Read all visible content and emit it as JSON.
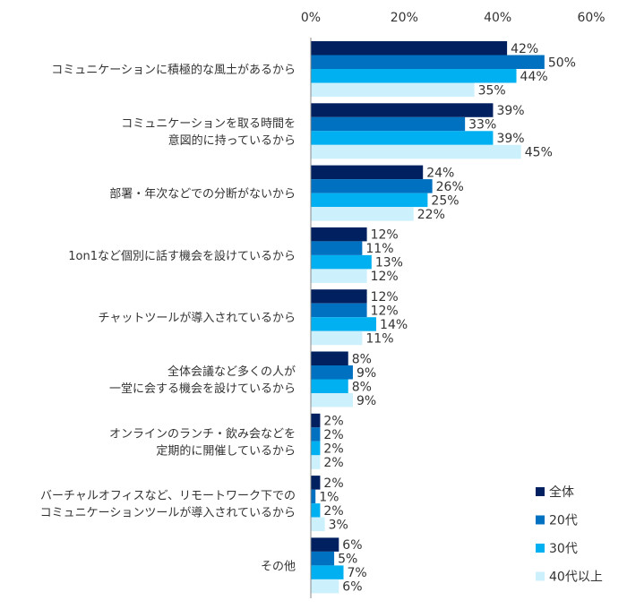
{
  "chart_data": {
    "type": "bar",
    "orientation": "horizontal",
    "xlim": [
      0,
      60
    ],
    "ticks": [
      "0%",
      "20%",
      "40%",
      "60%"
    ],
    "tick_values": [
      0,
      20,
      40,
      60
    ],
    "value_suffix": "%",
    "legend_position": "bottom-right",
    "grid": false,
    "categories": [
      [
        "コミュニケーションに積極的な風土があるから"
      ],
      [
        "コミュニケーションを取る時間を",
        "意図的に持っているから"
      ],
      [
        "部署・年次などでの分断がないから"
      ],
      [
        "1on1など個別に話す機会を設けているから"
      ],
      [
        "チャットツールが導入されているから"
      ],
      [
        "全体会議など多くの人が",
        "一堂に会する機会を設けているから"
      ],
      [
        "オンラインのランチ・飲み会などを",
        "定期的に開催しているから"
      ],
      [
        "バーチャルオフィスなど、リモートワーク下での",
        "コミュニケーションツールが導入されているから"
      ],
      [
        "その他"
      ]
    ],
    "series": [
      {
        "name": "全体",
        "color": "#002060",
        "values": [
          42,
          39,
          24,
          12,
          12,
          8,
          2,
          2,
          6
        ]
      },
      {
        "name": "20代",
        "color": "#0070C0",
        "values": [
          50,
          33,
          26,
          11,
          12,
          9,
          2,
          1,
          5
        ]
      },
      {
        "name": "30代",
        "color": "#00B0F0",
        "values": [
          44,
          39,
          25,
          13,
          14,
          8,
          2,
          2,
          7
        ]
      },
      {
        "name": "40代以上",
        "color": "#CCF0FC",
        "values": [
          35,
          45,
          22,
          12,
          11,
          9,
          2,
          3,
          6
        ]
      }
    ]
  }
}
